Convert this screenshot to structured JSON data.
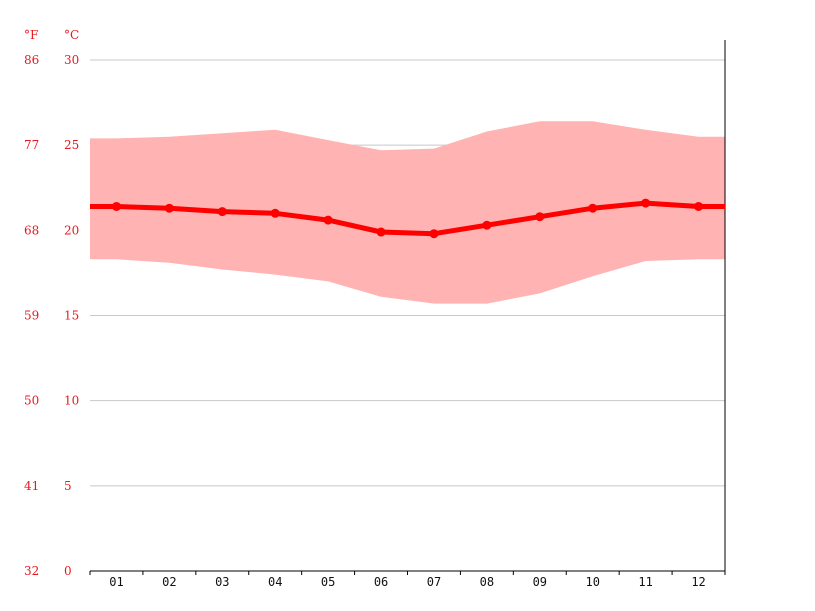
{
  "chart_data": {
    "type": "line",
    "title": "",
    "xlabel": "",
    "ylabel": "",
    "units": {
      "f": "°F",
      "c": "°C"
    },
    "categories": [
      "01",
      "02",
      "03",
      "04",
      "05",
      "06",
      "07",
      "08",
      "09",
      "10",
      "11",
      "12"
    ],
    "y_ticks_c": [
      "0",
      "5",
      "10",
      "15",
      "20",
      "25",
      "30"
    ],
    "y_ticks_f": [
      "32",
      "41",
      "50",
      "59",
      "68",
      "77",
      "86"
    ],
    "ylim": [
      0,
      30
    ],
    "grid": true,
    "series": [
      {
        "values": [
          21.4,
          21.3,
          21.1,
          21.0,
          20.6,
          19.9,
          19.8,
          20.3,
          20.8,
          21.3,
          21.6,
          21.4
        ]
      }
    ],
    "band": {
      "max": [
        25.4,
        25.5,
        25.7,
        25.9,
        25.3,
        24.7,
        24.8,
        25.8,
        26.4,
        26.4,
        25.9,
        25.5
      ],
      "min": [
        18.3,
        18.1,
        17.7,
        17.4,
        17.0,
        16.1,
        15.7,
        15.7,
        16.3,
        17.3,
        18.2,
        18.3
      ]
    },
    "colors": {
      "line": "#ff0000",
      "band": "#ffb3b3",
      "labels": "#e8191e",
      "grid": "#c8c8c8",
      "axis": "#000000"
    }
  }
}
